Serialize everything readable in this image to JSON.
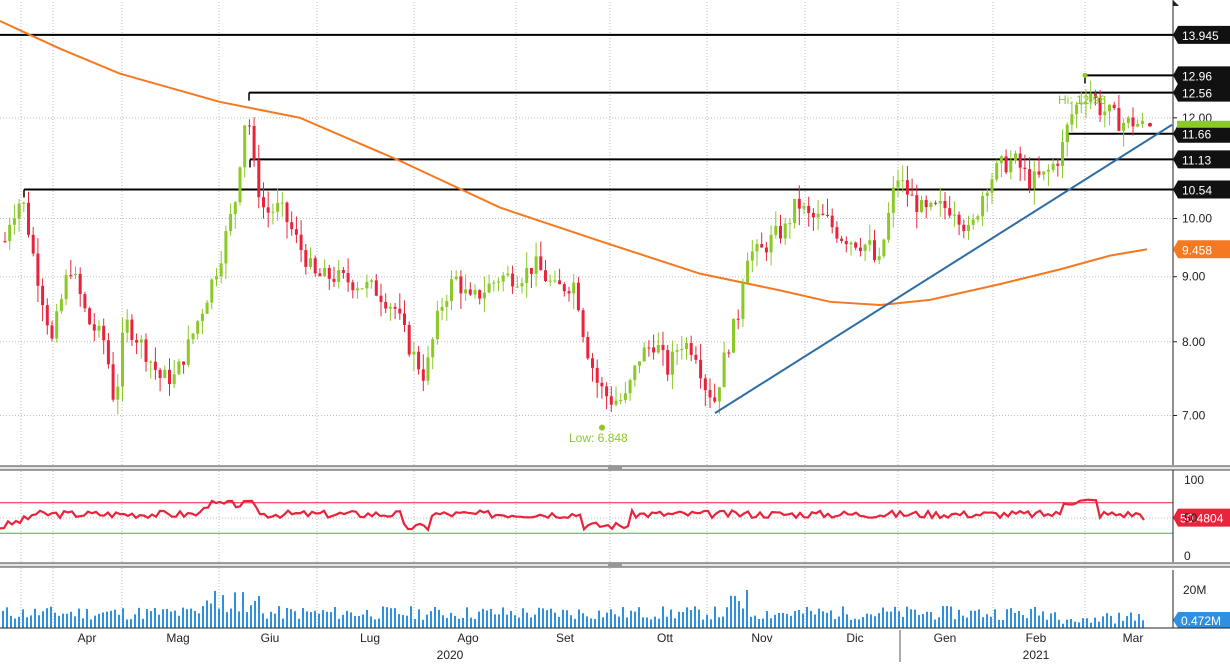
{
  "chart_data": [
    {
      "type": "candlestick",
      "y_ticks": [
        "7.00",
        "8.00",
        "9.00",
        "10.00",
        "12.00"
      ],
      "ylim": [
        6.4,
        14.8
      ],
      "y_scale": "log",
      "annotations": {
        "hi": "Hi: 12.96",
        "low": "Low: 6.848"
      },
      "price_labels": [
        {
          "text": "13.945",
          "style": "dark"
        },
        {
          "text": "12.96",
          "style": "dark"
        },
        {
          "text": "12.56",
          "style": "dark"
        },
        {
          "text": "11.66",
          "style": "dark"
        },
        {
          "text": "11.13",
          "style": "dark"
        },
        {
          "text": "10.54",
          "style": "dark"
        },
        {
          "text": "9.458",
          "style": "orange"
        }
      ],
      "horizontal_lines": [
        13.945,
        12.96,
        12.56,
        11.66,
        11.13,
        10.54
      ],
      "moving_average_last": 9.458,
      "trendline": {
        "from": 7.03,
        "to": 11.85
      },
      "colors": {
        "up": "#8ac926",
        "down": "#e8243c",
        "ma": "#f47920",
        "trend": "#2e6da4",
        "hi_low": "#8ac926"
      }
    },
    {
      "type": "line",
      "y_ticks": [
        "100",
        "50",
        "0"
      ],
      "ylim": [
        0,
        100
      ],
      "levels": [
        70,
        30
      ],
      "last_value_label": "50.4804",
      "colors": {
        "line": "#e8243c",
        "upper": "#e8243c",
        "lower": "#4caf50"
      }
    },
    {
      "type": "bar",
      "y_ticks": [
        "20M"
      ],
      "last_value_label": "0.472M",
      "colors": {
        "bar": "#2f8fe0"
      }
    }
  ],
  "x_axis": {
    "months": [
      "Apr",
      "Mag",
      "Giu",
      "Lug",
      "Ago",
      "Set",
      "Ott",
      "Nov",
      "Dic",
      "Gen",
      "Feb",
      "Mar"
    ],
    "years": [
      "2020",
      "2021"
    ]
  }
}
